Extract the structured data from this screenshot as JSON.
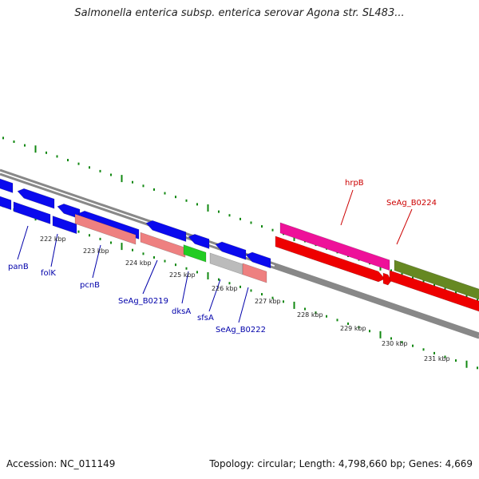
{
  "title": "Salmonella enterica subsp. enterica serovar Agona str. SL483...",
  "footer": {
    "accession": "Accession: NC_011149",
    "topology": "Topology: circular; Length: 4,798,660 bp; Genes: 4,669"
  },
  "colors": {
    "cds_blue": "#0a0aee",
    "salmon": "#ee8080",
    "dksA_green": "#22cc22",
    "grey": "#bbbbbb",
    "hrpB_magenta": "#ee1199",
    "red": "#ee0000",
    "olive": "#668822",
    "tick_green": "#118811",
    "backbone": "#888888",
    "label_blue": "#0000aa",
    "label_red": "#cc0000"
  },
  "kbp_labels": [
    "222 kbp",
    "223 kbp",
    "224 kbp",
    "225 kbp",
    "226 kbp",
    "227 kbp",
    "228 kbp",
    "229 kbp",
    "230 kbp",
    "231 kbp"
  ],
  "gene_labels": [
    {
      "name": "panB",
      "color": "label_blue"
    },
    {
      "name": "folK",
      "color": "label_blue"
    },
    {
      "name": "pcnB",
      "color": "label_blue"
    },
    {
      "name": "SeAg_B0219",
      "color": "label_blue"
    },
    {
      "name": "dksA",
      "color": "label_blue"
    },
    {
      "name": "sfsA",
      "color": "label_blue"
    },
    {
      "name": "SeAg_B0222",
      "color": "label_blue"
    },
    {
      "name": "hrpB",
      "color": "label_red"
    },
    {
      "name": "SeAg_B0224",
      "color": "label_red"
    }
  ]
}
